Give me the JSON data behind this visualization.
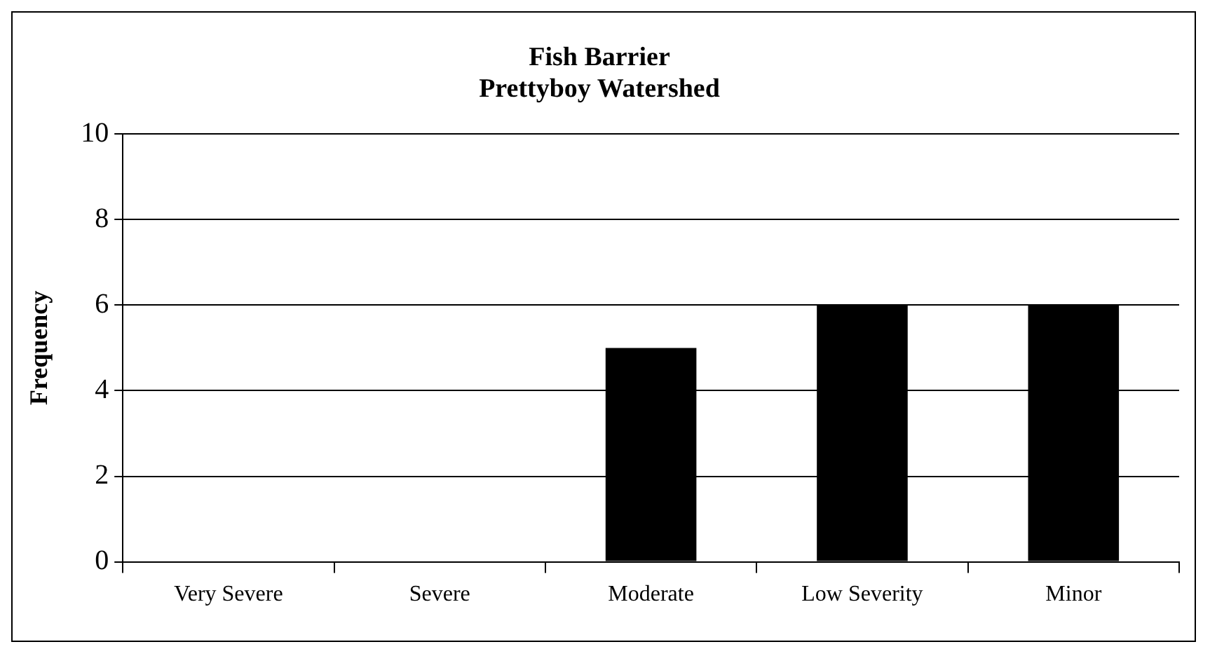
{
  "chart_data": {
    "type": "bar",
    "title": "Fish Barrier",
    "subtitle": "Prettyboy Watershed",
    "ylabel": "Frequency",
    "categories": [
      "Very Severe",
      "Severe",
      "Moderate",
      "Low Severity",
      "Minor"
    ],
    "values": [
      0,
      0,
      5,
      6,
      6
    ],
    "color": "#000000",
    "ylim": [
      0,
      10
    ],
    "yticks": [
      0,
      2,
      4,
      6,
      8,
      10
    ],
    "grid": "y"
  }
}
